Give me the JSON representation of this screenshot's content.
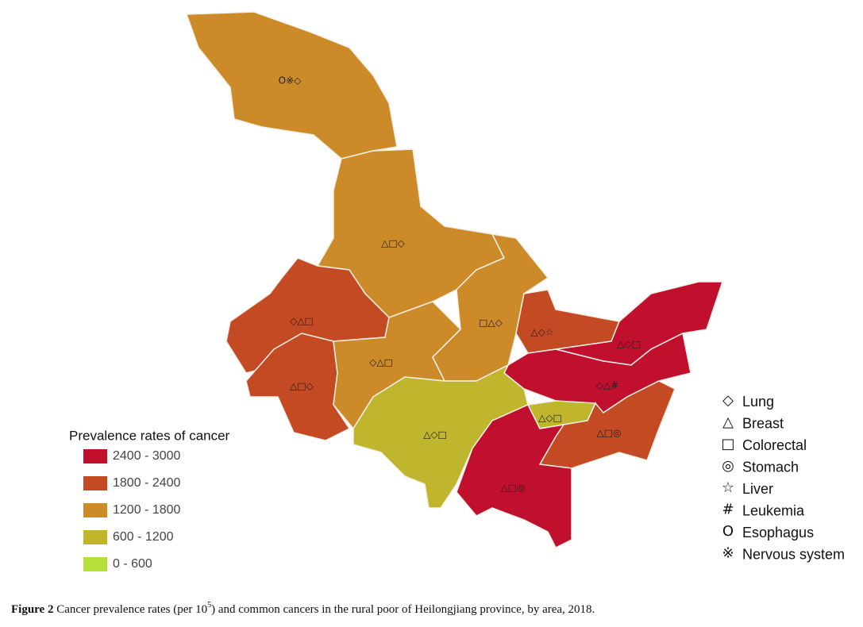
{
  "map": {
    "regions": [
      {
        "symbols": "O※◇",
        "color": "#cc8a28"
      },
      {
        "symbols": "△□◇",
        "color": "#cc8a28"
      },
      {
        "symbols": "◇△□",
        "color": "#c44a24"
      },
      {
        "symbols": "△□◇",
        "color": "#c44a24"
      },
      {
        "symbols": "◇△□",
        "color": "#cc8a28"
      },
      {
        "symbols": "□△◇",
        "color": "#cc8a28"
      },
      {
        "symbols": "△◇☆",
        "color": "#c44a24"
      },
      {
        "symbols": "△◇□",
        "color": "#c0102e"
      },
      {
        "symbols": "◇△#",
        "color": "#c0102e"
      },
      {
        "symbols": "△◇□",
        "color": "#c0b62e"
      },
      {
        "symbols": "△◇□",
        "color": "#c0b62e"
      },
      {
        "symbols": "△□◎",
        "color": "#c44a24"
      },
      {
        "symbols": "△□◎",
        "color": "#c0102e"
      }
    ],
    "legend": {
      "title": "Prevalence rates of cancer",
      "items": [
        {
          "label": "2400 - 3000",
          "color": "#c0102e"
        },
        {
          "label": "1800 - 2400",
          "color": "#c44a24"
        },
        {
          "label": "1200 - 1800",
          "color": "#cc8a28"
        },
        {
          "label": "600 - 1200",
          "color": "#c0b62e"
        },
        {
          "label": "0 - 600",
          "color": "#b5e03a"
        }
      ]
    },
    "symbol_key": [
      {
        "symbol": "◇",
        "name": "Lung"
      },
      {
        "symbol": "△",
        "name": "Breast"
      },
      {
        "symbol": "□",
        "name": "Colorectal"
      },
      {
        "symbol": "◎",
        "name": "Stomach"
      },
      {
        "symbol": "☆",
        "name": "Liver"
      },
      {
        "symbol": "#",
        "name": "Leukemia"
      },
      {
        "symbol": "O",
        "name": "Esophagus"
      },
      {
        "symbol": "※",
        "name": "Nervous system"
      }
    ]
  },
  "caption": {
    "label": "Figure 2",
    "text_before": "Cancer prevalence rates (per 10",
    "superscript": "5",
    "text_after": ") and common cancers in the rural poor of Heilongjiang province, by area, 2018."
  }
}
